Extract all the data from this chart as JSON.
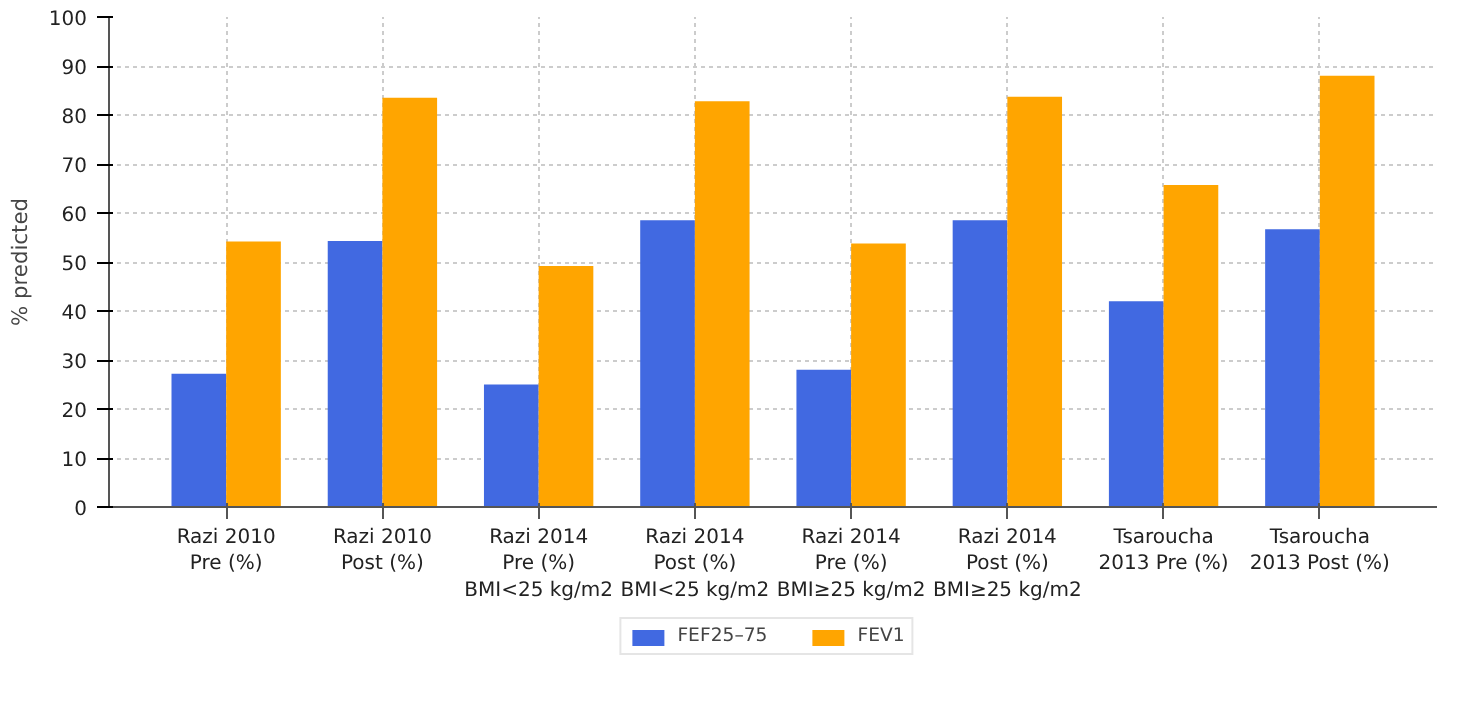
{
  "chart_data": {
    "type": "bar",
    "ylabel": "% predicted",
    "categories": [
      "Razi 2010\nPre (%)",
      "Razi 2010\nPost (%)",
      "Razi 2014\nPre (%)\nBMI<25 kg/m2",
      "Razi 2014\nPost (%)\nBMI<25 kg/m2",
      "Razi 2014\nPre (%)\nBMI≥25 kg/m2",
      "Razi 2014\nPost (%)\nBMI≥25 kg/m2",
      "Tsaroucha\n2013 Pre (%)",
      "Tsaroucha\n2013 Post (%)"
    ],
    "series": [
      {
        "name": "FEF25–75",
        "color": "#4169e1",
        "values": [
          27.2,
          54.3,
          25,
          58.5,
          28,
          58.5,
          42,
          56.7
        ]
      },
      {
        "name": "FEV1",
        "color": "#ffa500",
        "values": [
          54.2,
          83.5,
          49.2,
          82.8,
          53.8,
          83.7,
          65.7,
          88
        ]
      }
    ],
    "ylim": [
      0,
      100
    ],
    "yticks": [
      0,
      10,
      20,
      30,
      40,
      50,
      60,
      70,
      80,
      90,
      100
    ],
    "grid": true,
    "legend": "bottom"
  }
}
